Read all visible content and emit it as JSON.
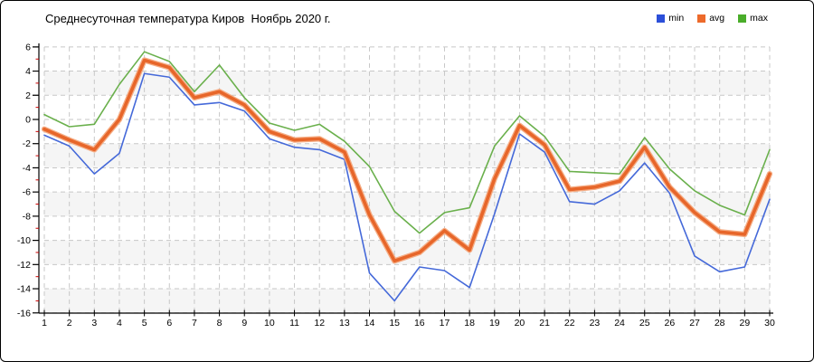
{
  "title": "Среднесуточная температура Киров  Ноябрь 2020 г.",
  "legend": {
    "items": [
      {
        "label": "min",
        "color": "#2c4fd9"
      },
      {
        "label": "avg",
        "color": "#ed6a2b"
      },
      {
        "label": "max",
        "color": "#4aad2a"
      }
    ]
  },
  "chart_data": {
    "type": "line",
    "title": "Среднесуточная температура Киров  Ноябрь 2020 г.",
    "legend_position": "top-right",
    "grid": true,
    "x": [
      1,
      2,
      3,
      4,
      5,
      6,
      7,
      8,
      9,
      10,
      11,
      12,
      13,
      14,
      15,
      16,
      17,
      18,
      19,
      20,
      21,
      22,
      23,
      24,
      25,
      26,
      27,
      28,
      29,
      30
    ],
    "xtick_labels": [
      "1",
      "2",
      "3",
      "4",
      "5",
      "6",
      "7",
      "8",
      "9",
      "10",
      "11",
      "12",
      "13",
      "14",
      "15",
      "16",
      "17",
      "18",
      "19",
      "20",
      "21",
      "22",
      "23",
      "24",
      "25",
      "26",
      "27",
      "28",
      "29",
      "30"
    ],
    "ylim": [
      -16,
      6
    ],
    "yticks": [
      6,
      4,
      2,
      0,
      -2,
      -4,
      -6,
      -8,
      -10,
      -12,
      -14,
      -16
    ],
    "ytick_labels": [
      "6",
      "4",
      "2",
      "0",
      "-2",
      "-4",
      "-6",
      "-8",
      "-10",
      "-12",
      "-14",
      "-16"
    ],
    "y_minor_ticks": [
      5,
      3,
      1,
      -1,
      -3,
      -5,
      -7,
      -9,
      -11,
      -13,
      -15
    ],
    "shaded_bands": [
      [
        4,
        2
      ],
      [
        -2,
        -4
      ],
      [
        -6,
        -8
      ],
      [
        -10,
        -12
      ],
      [
        -14,
        -16
      ]
    ],
    "series": [
      {
        "name": "min",
        "color": "#4569d9",
        "line_width": 1.6,
        "values": [
          -1.3,
          -2.2,
          -4.5,
          -2.8,
          3.8,
          3.5,
          1.2,
          1.4,
          0.7,
          -1.6,
          -2.3,
          -2.5,
          -3.3,
          -12.7,
          -15.0,
          -12.2,
          -12.5,
          -13.9,
          -7.8,
          -1.2,
          -2.7,
          -6.8,
          -7.0,
          -5.9,
          -3.6,
          -6.1,
          -11.3,
          -12.6,
          -12.2,
          -6.6
        ]
      },
      {
        "name": "avg",
        "color": "#e7662a",
        "halo_color": "#f5ad85",
        "line_width": 3.6,
        "values": [
          -0.8,
          -1.7,
          -2.5,
          0.0,
          4.9,
          4.3,
          1.8,
          2.3,
          1.2,
          -1.0,
          -1.7,
          -1.6,
          -2.7,
          -7.9,
          -11.7,
          -11.0,
          -9.2,
          -10.8,
          -4.9,
          -0.5,
          -2.1,
          -5.8,
          -5.6,
          -5.1,
          -2.3,
          -5.6,
          -7.7,
          -9.3,
          -9.5,
          -4.5
        ]
      },
      {
        "name": "max",
        "color": "#6ab04c",
        "line_width": 1.6,
        "values": [
          0.4,
          -0.6,
          -0.4,
          2.9,
          5.6,
          4.8,
          2.3,
          4.5,
          1.8,
          -0.3,
          -0.9,
          -0.4,
          -1.8,
          -3.9,
          -7.6,
          -9.4,
          -7.7,
          -7.3,
          -2.2,
          0.3,
          -1.4,
          -4.3,
          -4.4,
          -4.5,
          -1.5,
          -4.1,
          -5.9,
          -7.1,
          -7.9,
          -2.5
        ]
      }
    ],
    "colors": {
      "grid": "#c7c7c7",
      "band": "#f5f5f5",
      "axis": "#000000",
      "minor_tick": "#cc0000"
    }
  }
}
